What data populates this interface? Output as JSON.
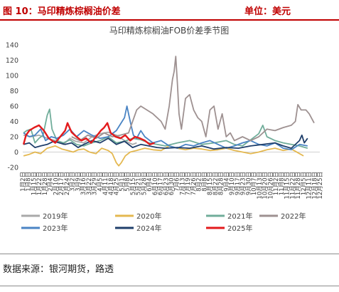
{
  "header": {
    "figure_title": "图 10：马印精炼棕榈油价差",
    "unit": "单位：美元"
  },
  "footer": {
    "source": "数据来源：银河期货，路透"
  },
  "chart_data": {
    "type": "line",
    "title": "马印精炼棕榈油FOB价差季节图",
    "xlabel": "",
    "ylabel": "",
    "ylim": [
      -20,
      140
    ],
    "yticks": [
      -20,
      0,
      20,
      40,
      60,
      80,
      100,
      120,
      140
    ],
    "grid": false,
    "legend_position": "bottom",
    "x_tick_labels": [
      "1月2日",
      "1月8日",
      "1月15日",
      "1月22日",
      "1月28日",
      "2月4日",
      "2月10日",
      "2月17日",
      "2月24日",
      "3月2日",
      "3月9日",
      "3月16日",
      "3月22日",
      "3月29日",
      "4月5日",
      "4月11日",
      "4月18日",
      "4月25日",
      "5月1日",
      "5月8日",
      "5月15日",
      "5月21日",
      "5月28日",
      "6月4日",
      "6月10日",
      "6月17日",
      "6月23日",
      "6月30日",
      "7月6日",
      "7月13日",
      "7月19日",
      "7月26日",
      "8月2日",
      "8月8日",
      "8月15日",
      "8月22日",
      "8月28日",
      "9月4日",
      "9月10日",
      "9月17日",
      "9月23日",
      "9月30日",
      "10月7日",
      "10月13日",
      "10月20日",
      "10月26日",
      "11月2日",
      "11月8日",
      "11月15日",
      "11月22日",
      "11月28日",
      "12月5日",
      "12月11日",
      "12月18日",
      "12月25日"
    ],
    "x_tick_labels_shown": [
      "1月2日",
      "1月8日",
      "1月15日",
      "1月22日",
      "1月28日",
      "2月4日",
      "2月10日",
      "2月17日",
      "2月24日",
      "3月2日",
      "3月9日",
      "3月16日",
      "3月22日",
      "3月29日",
      "4月5日",
      "4月11日",
      "4月18日",
      "4月25日",
      "5月1日",
      "5月8日",
      "5月15日",
      "5月21日",
      "5月28日",
      "6月4日",
      "6月10日",
      "6月17日",
      "6月23日",
      "6月30日",
      "7月6日",
      "7月13日",
      "7月19日",
      "7月26日",
      "8月2日",
      "8月8日",
      "8月15日",
      "8月22日",
      "8月28日",
      "9月4日",
      "9月10日",
      "9月17日",
      "9月23日",
      "9月30日",
      "10月7日",
      "10月13日",
      "10月20日",
      "10月26日",
      "11月2日",
      "11月8日",
      "11月15日",
      "11月22日",
      "11月28日",
      "12月5日",
      "12月11日",
      "12月18日",
      "12月25日"
    ],
    "series": [
      {
        "name": "2019年",
        "color": "#a9a9a9",
        "values": [
          [
            1,
            22
          ],
          [
            10,
            20
          ],
          [
            20,
            22
          ],
          [
            30,
            18
          ],
          [
            40,
            15
          ],
          [
            50,
            10
          ],
          [
            58,
            18
          ],
          [
            65,
            14
          ],
          [
            75,
            12
          ],
          [
            85,
            20
          ],
          [
            95,
            24
          ],
          [
            105,
            26
          ],
          [
            115,
            22
          ],
          [
            125,
            15
          ],
          [
            135,
            10
          ],
          [
            140,
            12
          ]
        ]
      },
      {
        "name": "2020年",
        "color": "#e4b850",
        "values": [
          [
            1,
            -5
          ],
          [
            8,
            -3
          ],
          [
            15,
            0
          ],
          [
            22,
            -2
          ],
          [
            30,
            5
          ],
          [
            40,
            8
          ],
          [
            48,
            4
          ],
          [
            55,
            2
          ],
          [
            62,
            0
          ],
          [
            68,
            3
          ],
          [
            75,
            4
          ],
          [
            82,
            0
          ],
          [
            90,
            -2
          ],
          [
            97,
            5
          ],
          [
            105,
            2
          ],
          [
            110,
            -2
          ],
          [
            115,
            -14
          ],
          [
            118,
            -18
          ],
          [
            121,
            -14
          ],
          [
            126,
            -5
          ],
          [
            132,
            0
          ],
          [
            140,
            2
          ],
          [
            150,
            5
          ],
          [
            160,
            3
          ],
          [
            170,
            2
          ],
          [
            180,
            8
          ],
          [
            190,
            5
          ],
          [
            200,
            3
          ],
          [
            210,
            5
          ],
          [
            220,
            4
          ],
          [
            230,
            2
          ],
          [
            240,
            3
          ],
          [
            250,
            5
          ],
          [
            260,
            2
          ],
          [
            270,
            0
          ],
          [
            280,
            -2
          ],
          [
            290,
            0
          ],
          [
            300,
            3
          ],
          [
            310,
            5
          ],
          [
            320,
            2
          ],
          [
            330,
            4
          ],
          [
            340,
            -2
          ],
          [
            345,
            -5
          ]
        ]
      },
      {
        "name": "2021年",
        "color": "#70ad9a",
        "values": [
          [
            1,
            25
          ],
          [
            5,
            28
          ],
          [
            10,
            30
          ],
          [
            15,
            12
          ],
          [
            20,
            18
          ],
          [
            25,
            22
          ],
          [
            30,
            48
          ],
          [
            33,
            56
          ],
          [
            36,
            30
          ],
          [
            42,
            15
          ],
          [
            50,
            12
          ],
          [
            58,
            16
          ],
          [
            66,
            10
          ],
          [
            75,
            8
          ],
          [
            85,
            12
          ],
          [
            95,
            15
          ],
          [
            105,
            20
          ],
          [
            115,
            12
          ],
          [
            125,
            14
          ],
          [
            135,
            18
          ],
          [
            145,
            16
          ],
          [
            155,
            12
          ],
          [
            165,
            10
          ],
          [
            175,
            8
          ],
          [
            190,
            12
          ],
          [
            205,
            15
          ],
          [
            220,
            10
          ],
          [
            235,
            12
          ],
          [
            250,
            15
          ],
          [
            260,
            10
          ],
          [
            270,
            8
          ],
          [
            280,
            16
          ],
          [
            290,
            24
          ],
          [
            295,
            35
          ],
          [
            300,
            20
          ],
          [
            310,
            15
          ],
          [
            320,
            12
          ],
          [
            330,
            10
          ],
          [
            340,
            8
          ],
          [
            350,
            5
          ]
        ]
      },
      {
        "name": "2022年",
        "color": "#9e9191",
        "values": [
          [
            60,
            20
          ],
          [
            70,
            15
          ],
          [
            80,
            22
          ],
          [
            90,
            18
          ],
          [
            100,
            25
          ],
          [
            110,
            20
          ],
          [
            120,
            22
          ],
          [
            130,
            25
          ],
          [
            140,
            55
          ],
          [
            145,
            60
          ],
          [
            160,
            50
          ],
          [
            170,
            40
          ],
          [
            175,
            30
          ],
          [
            180,
            60
          ],
          [
            184,
            95
          ],
          [
            186,
            105
          ],
          [
            188,
            125
          ],
          [
            190,
            90
          ],
          [
            192,
            50
          ],
          [
            195,
            30
          ],
          [
            200,
            70
          ],
          [
            205,
            75
          ],
          [
            210,
            55
          ],
          [
            215,
            45
          ],
          [
            220,
            40
          ],
          [
            225,
            20
          ],
          [
            230,
            55
          ],
          [
            235,
            60
          ],
          [
            240,
            30
          ],
          [
            245,
            50
          ],
          [
            250,
            20
          ],
          [
            255,
            25
          ],
          [
            260,
            15
          ],
          [
            270,
            20
          ],
          [
            280,
            15
          ],
          [
            290,
            20
          ],
          [
            300,
            30
          ],
          [
            310,
            28
          ],
          [
            320,
            32
          ],
          [
            330,
            35
          ],
          [
            335,
            40
          ],
          [
            338,
            62
          ],
          [
            342,
            55
          ],
          [
            348,
            55
          ],
          [
            352,
            50
          ],
          [
            358,
            38
          ]
        ]
      },
      {
        "name": "2023年",
        "color": "#4a84c4",
        "values": [
          [
            1,
            25
          ],
          [
            8,
            20
          ],
          [
            15,
            22
          ],
          [
            22,
            30
          ],
          [
            28,
            15
          ],
          [
            35,
            20
          ],
          [
            42,
            18
          ],
          [
            50,
            22
          ],
          [
            58,
            30
          ],
          [
            66,
            20
          ],
          [
            75,
            28
          ],
          [
            85,
            22
          ],
          [
            95,
            18
          ],
          [
            105,
            20
          ],
          [
            115,
            28
          ],
          [
            125,
            45
          ],
          [
            128,
            60
          ],
          [
            132,
            40
          ],
          [
            136,
            22
          ],
          [
            140,
            18
          ],
          [
            145,
            28
          ],
          [
            150,
            20
          ],
          [
            160,
            12
          ],
          [
            170,
            15
          ],
          [
            180,
            8
          ],
          [
            190,
            5
          ],
          [
            200,
            10
          ],
          [
            210,
            8
          ],
          [
            220,
            12
          ],
          [
            230,
            15
          ],
          [
            240,
            10
          ],
          [
            250,
            5
          ],
          [
            260,
            8
          ],
          [
            270,
            12
          ],
          [
            280,
            15
          ],
          [
            290,
            10
          ],
          [
            300,
            8
          ],
          [
            310,
            12
          ],
          [
            320,
            5
          ],
          [
            330,
            3
          ],
          [
            340,
            10
          ],
          [
            350,
            8
          ]
        ]
      },
      {
        "name": "2024年",
        "color": "#1f3f6b",
        "values": [
          [
            1,
            10
          ],
          [
            8,
            12
          ],
          [
            15,
            6
          ],
          [
            22,
            8
          ],
          [
            30,
            10
          ],
          [
            38,
            14
          ],
          [
            45,
            12
          ],
          [
            52,
            10
          ],
          [
            60,
            12
          ],
          [
            68,
            6
          ],
          [
            75,
            10
          ],
          [
            85,
            15
          ],
          [
            95,
            12
          ],
          [
            105,
            18
          ],
          [
            115,
            10
          ],
          [
            125,
            14
          ],
          [
            135,
            6
          ],
          [
            145,
            10
          ],
          [
            155,
            8
          ],
          [
            165,
            6
          ],
          [
            175,
            5
          ],
          [
            190,
            6
          ],
          [
            205,
            5
          ],
          [
            220,
            8
          ],
          [
            235,
            4
          ],
          [
            250,
            6
          ],
          [
            265,
            5
          ],
          [
            280,
            8
          ],
          [
            295,
            10
          ],
          [
            310,
            12
          ],
          [
            320,
            8
          ],
          [
            330,
            5
          ],
          [
            340,
            15
          ],
          [
            343,
            22
          ],
          [
            346,
            12
          ],
          [
            350,
            18
          ]
        ]
      },
      {
        "name": "2025年",
        "color": "#e31a1c",
        "values": [
          [
            1,
            10
          ],
          [
            4,
            22
          ],
          [
            8,
            28
          ],
          [
            14,
            32
          ],
          [
            20,
            35
          ],
          [
            26,
            28
          ],
          [
            32,
            18
          ],
          [
            40,
            12
          ],
          [
            46,
            20
          ],
          [
            52,
            28
          ],
          [
            55,
            38
          ],
          [
            60,
            26
          ],
          [
            66,
            20
          ],
          [
            72,
            15
          ],
          [
            78,
            18
          ],
          [
            84,
            12
          ],
          [
            90,
            20
          ],
          [
            96,
            28
          ],
          [
            100,
            32
          ],
          [
            104,
            38
          ],
          [
            108,
            25
          ],
          [
            114,
            20
          ],
          [
            120,
            18
          ],
          [
            126,
            22
          ],
          [
            132,
            15
          ],
          [
            138,
            20
          ],
          [
            144,
            18
          ],
          [
            150,
            15
          ],
          [
            156,
            10
          ],
          [
            162,
            12
          ]
        ]
      }
    ]
  }
}
